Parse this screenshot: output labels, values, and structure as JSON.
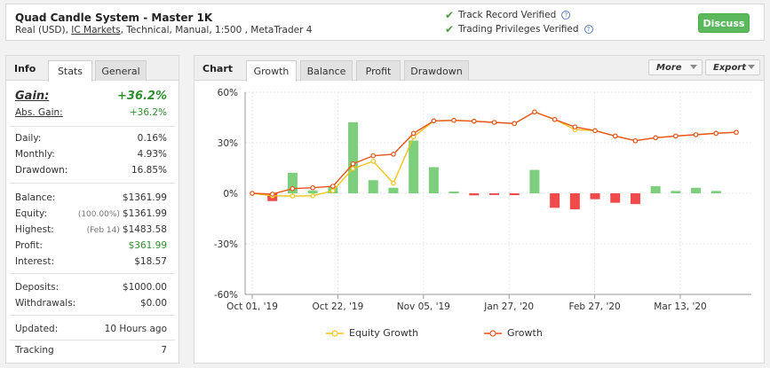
{
  "header": {
    "title": "Quad Candle System - Master 1K",
    "sub_prefix": "Real (USD), ",
    "broker": "IC Markets",
    "sub_suffix": ", Technical, Manual, 1:500 , MetaTrader 4",
    "verified_track": "Track Record Verified",
    "verified_privileges": "Trading Privileges Verified",
    "discuss_label": "Discuss"
  },
  "left_panel": {
    "title": "Info",
    "tabs": [
      "Stats",
      "General"
    ],
    "active_tab": "Stats",
    "gain_label": "Gain:",
    "gain_value": "+36.2%",
    "abs_gain_label": "Abs. Gain:",
    "abs_gain_value": "+36.2%",
    "daily_label": "Daily:",
    "daily_value": "0.16%",
    "monthly_label": "Monthly:",
    "monthly_value": "4.93%",
    "drawdown_label": "Drawdown:",
    "drawdown_value": "16.85%",
    "balance_label": "Balance:",
    "balance_value": "$1361.99",
    "equity_label": "Equity:",
    "equity_note": "(100.00%)",
    "equity_value": "$1361.99",
    "highest_label": "Highest:",
    "highest_note": "(Feb 14)",
    "highest_value": "$1483.58",
    "profit_label": "Profit:",
    "profit_value": "$361.99",
    "interest_label": "Interest:",
    "interest_value": "$18.57",
    "deposits_label": "Deposits:",
    "deposits_value": "$1000.00",
    "withdrawals_label": "Withdrawals:",
    "withdrawals_value": "$0.00",
    "updated_label": "Updated:",
    "updated_value": "10 Hours ago",
    "tracking_label": "Tracking",
    "tracking_value": "7"
  },
  "right_panel": {
    "title": "Chart",
    "tabs": [
      "Growth",
      "Balance",
      "Profit",
      "Drawdown"
    ],
    "active_tab": "Growth",
    "more_label": "More",
    "export_label": "Export",
    "legend_equity": "Equity Growth",
    "legend_growth": "Growth"
  },
  "colors": {
    "growth_line": "#e8541e",
    "equity_line": "#f0c419",
    "bar_positive": "#7dcf7d",
    "bar_negative": "#f04a4a",
    "discuss_button": "#5cb85c"
  },
  "chart_data": {
    "type": "line",
    "ylim": [
      -60,
      60
    ],
    "yticks": [
      60,
      30,
      0,
      -30,
      -60
    ],
    "ytick_labels": [
      "60%",
      "30%",
      "0%",
      "-30%",
      "-60%"
    ],
    "xtick_labels": [
      "Oct 01, '19",
      "Oct 22, '19",
      "Nov 05, '19",
      "Jan 27, '20",
      "Feb 27, '20",
      "Mar 13, '20"
    ],
    "grid": true,
    "legend_position": "bottom",
    "series": [
      {
        "name": "Growth",
        "values": [
          0,
          -0.5,
          2.8,
          3.3,
          4.2,
          17.5,
          22.3,
          23.2,
          35.6,
          43.0,
          43.3,
          42.8,
          42.1,
          41.4,
          48.3,
          43.8,
          39.4,
          37.2,
          34.0,
          31.2,
          33.0,
          34.0,
          34.8,
          35.6,
          36.2
        ]
      },
      {
        "name": "Equity Growth",
        "values": [
          0,
          -1.5,
          -1.6,
          -1.5,
          1.5,
          14.7,
          19.0,
          6.0,
          33.5,
          43.0,
          43.3,
          42.8,
          42.1,
          41.4,
          48.3,
          43.8,
          37.8,
          37.2,
          34.0,
          31.2,
          33.0,
          34.0,
          34.8,
          35.6,
          36.2
        ]
      }
    ],
    "bars": [
      -4.6,
      12.2,
      1.7,
      4.2,
      42.2,
      7.8,
      3.3,
      31.3,
      15.5,
      1.1,
      -1.2,
      -1.0,
      -1.1,
      13.9,
      -8.6,
      -9.5,
      -3.5,
      -5.6,
      -6.4,
      4.2,
      1.4,
      3.3,
      1.4
    ]
  }
}
